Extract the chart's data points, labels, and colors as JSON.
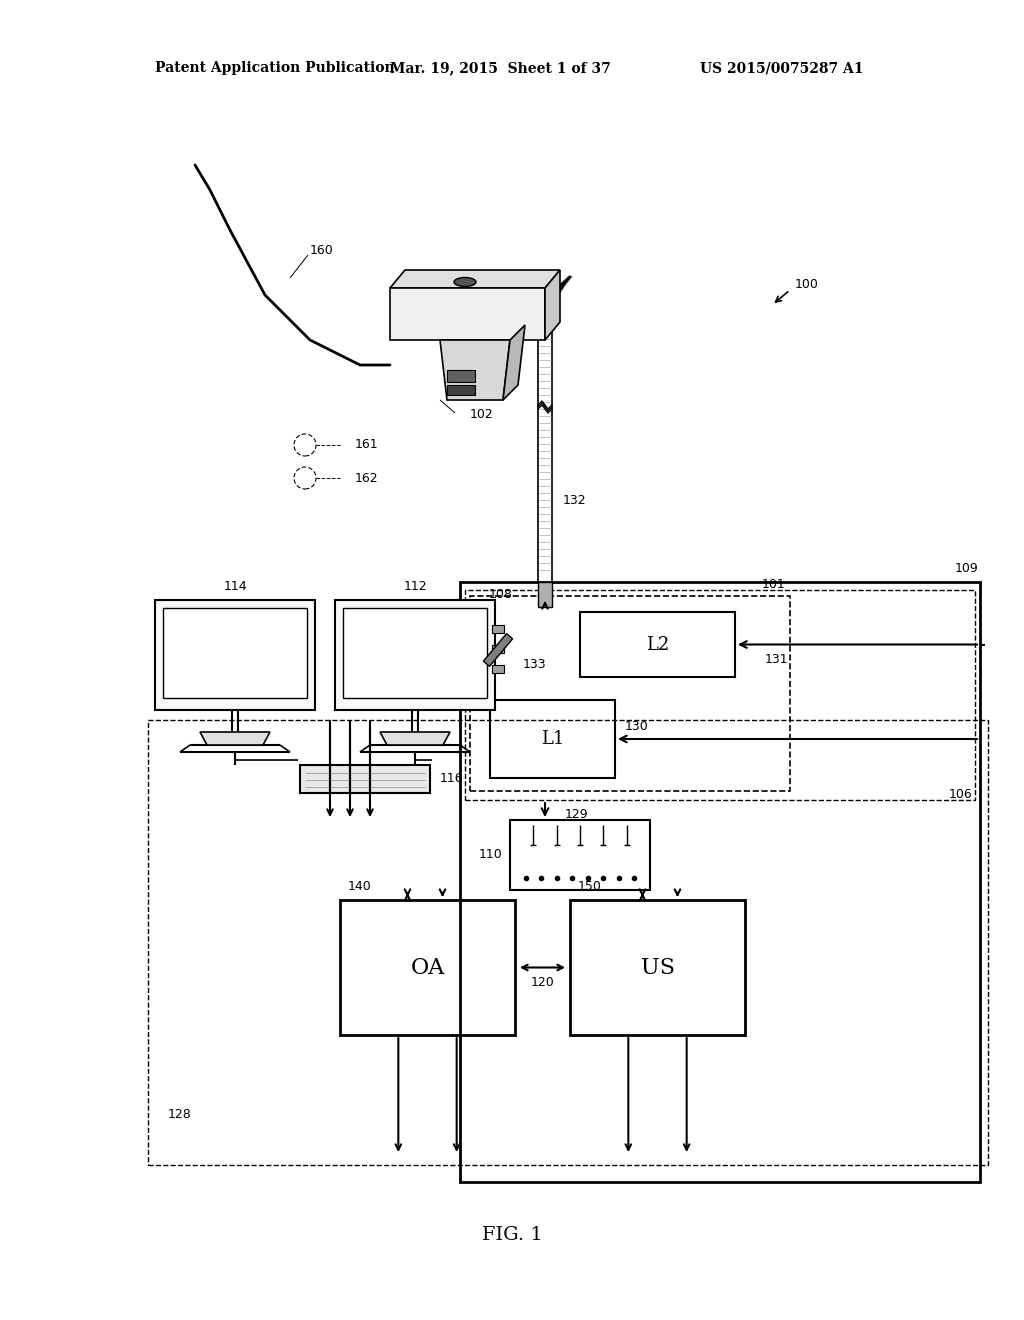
{
  "bg_color": "#ffffff",
  "header_text1": "Patent Application Publication",
  "header_text2": "Mar. 19, 2015  Sheet 1 of 37",
  "header_text3": "US 2015/0075287 A1",
  "figure_label": "FIG. 1",
  "label_100": "100",
  "label_101": "101",
  "label_102": "102",
  "label_106": "106",
  "label_108": "108",
  "label_109": "109",
  "label_110": "110",
  "label_112": "112",
  "label_114": "114",
  "label_116": "116",
  "label_120": "120",
  "label_128": "128",
  "label_129": "129",
  "label_130": "130",
  "label_131": "131",
  "label_132": "132",
  "label_133": "133",
  "label_140": "140",
  "label_150": "150",
  "label_160": "160",
  "label_161": "161",
  "label_162": "162",
  "box_OA": "OA",
  "box_US": "US",
  "box_L1": "L1",
  "box_L2": "L2",
  "lc": "#000000",
  "lw": 1.5
}
